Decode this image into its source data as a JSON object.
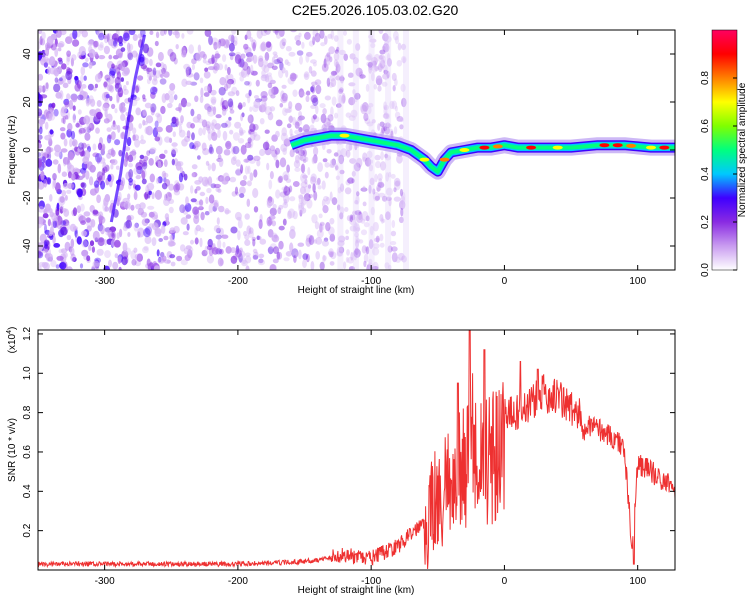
{
  "figure_title": "C2E5.2026.105.03.02.G20",
  "chart_data": [
    {
      "type": "heatmap",
      "title": "C2E5.2026.105.03.02.G20",
      "xlabel": "Height of straight line (km)",
      "ylabel": "Frequency (Hz)",
      "xlim": [
        -350,
        128
      ],
      "ylim": [
        -50,
        50
      ],
      "x_ticks": [
        -300,
        -200,
        -100,
        0,
        100
      ],
      "x_tick_labels": [
        "-300",
        "-200",
        "-100",
        "0",
        "100"
      ],
      "y_ticks": [
        -40,
        -20,
        0,
        20,
        40
      ],
      "y_tick_labels": [
        "-40",
        "-20",
        "0",
        "20",
        "40"
      ],
      "colorbar": {
        "label": "Normalized spectral amplitude",
        "range": [
          0.0,
          1.0
        ],
        "ticks": [
          0.0,
          0.2,
          0.4,
          0.6,
          0.8
        ],
        "tick_labels": [
          "0.0",
          "0.2",
          "0.4",
          "0.6",
          "0.8"
        ],
        "colormap": [
          "#ffffff",
          "#c99cf0",
          "#8a2be2",
          "#3f00ff",
          "#00c8ff",
          "#00ff7f",
          "#80ff00",
          "#ffff00",
          "#ff8000",
          "#ff0000",
          "#ff0060"
        ]
      },
      "ridge": {
        "description_free": true,
        "x": [
          -160,
          -150,
          -140,
          -130,
          -120,
          -110,
          -100,
          -90,
          -80,
          -70,
          -60,
          -55,
          -50,
          -45,
          -40,
          -30,
          -20,
          -10,
          0,
          10,
          30,
          50,
          70,
          90,
          110,
          128
        ],
        "frequency": [
          2,
          4,
          5,
          6,
          6,
          5,
          4,
          3,
          2,
          0,
          -4,
          -7,
          -9,
          -4,
          -1,
          0,
          1,
          1,
          2,
          1,
          1,
          1,
          2,
          2,
          1,
          1
        ]
      },
      "noise_region_x": [
        -350,
        -75
      ]
    },
    {
      "type": "line",
      "xlabel": "Height of straight line (km)",
      "ylabel": "SNR (10 * v/v)",
      "y_scale_label": "(x10",
      "y_scale_exp": "4",
      "y_scale_close": ")",
      "xlim": [
        -350,
        128
      ],
      "ylim": [
        0,
        1.22
      ],
      "x_ticks": [
        -300,
        -200,
        -100,
        0,
        100
      ],
      "x_tick_labels": [
        "-300",
        "-200",
        "-100",
        "0",
        "100"
      ],
      "y_ticks": [
        0.2,
        0.4,
        0.6,
        0.8,
        1.0,
        1.2
      ],
      "y_tick_labels": [
        "0.2",
        "0.4",
        "0.6",
        "0.8",
        "1.0",
        "1.2"
      ],
      "color": "#ee3030",
      "series": [
        {
          "name": "SNR",
          "x": [
            -350,
            -300,
            -250,
            -200,
            -160,
            -140,
            -120,
            -110,
            -100,
            -80,
            -60,
            -50,
            -40,
            -30,
            -25,
            -20,
            -10,
            0,
            10,
            20,
            30,
            40,
            50,
            60,
            70,
            80,
            90,
            96,
            100,
            110,
            120,
            128
          ],
          "y": [
            0.03,
            0.03,
            0.03,
            0.03,
            0.04,
            0.05,
            0.08,
            0.06,
            0.06,
            0.12,
            0.25,
            0.35,
            0.45,
            0.6,
            0.75,
            0.65,
            0.62,
            0.78,
            0.8,
            0.85,
            0.9,
            0.88,
            0.82,
            0.75,
            0.72,
            0.68,
            0.62,
            0.1,
            0.55,
            0.5,
            0.45,
            0.42
          ]
        }
      ],
      "peaks": {
        "x": [
          -26,
          -15,
          -35,
          12,
          25,
          97
        ],
        "y": [
          1.22,
          1.12,
          0.95,
          1.06,
          1.02,
          0.03
        ]
      }
    }
  ]
}
